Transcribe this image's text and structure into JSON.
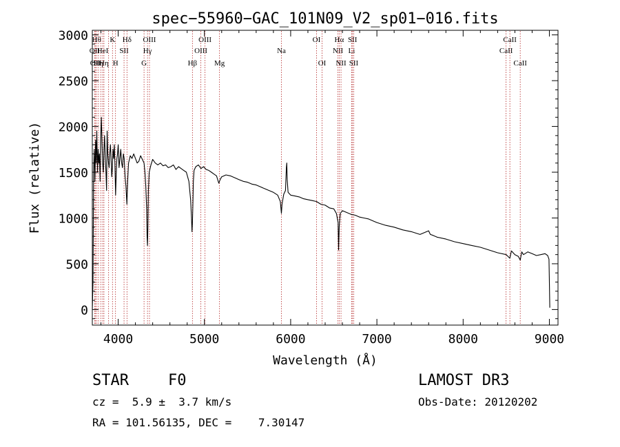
{
  "chart_data": {
    "type": "line",
    "title": "spec−55960−GAC_101N09_V2_sp01−016.fits",
    "xlabel": "Wavelength (Å)",
    "ylabel": "Flux (relative)",
    "xlim": [
      3700,
      9100
    ],
    "ylim": [
      -170,
      3050
    ],
    "xticks": [
      4000,
      5000,
      6000,
      7000,
      8000,
      9000
    ],
    "xtick_labels": [
      "4000",
      "5000",
      "6000",
      "7000",
      "8000",
      "9000"
    ],
    "yticks": [
      0,
      500,
      1000,
      1500,
      2000,
      2500,
      3000
    ],
    "ytick_labels": [
      "0",
      "500",
      "1000",
      "1500",
      "2000",
      "2500",
      "3000"
    ],
    "series": [
      {
        "name": "spectrum",
        "x": [
          3700,
          3708,
          3715,
          3722,
          3730,
          3738,
          3745,
          3752,
          3760,
          3768,
          3775,
          3782,
          3790,
          3798,
          3805,
          3812,
          3820,
          3828,
          3835,
          3842,
          3850,
          3858,
          3865,
          3872,
          3880,
          3888,
          3895,
          3902,
          3910,
          3918,
          3925,
          3933,
          3940,
          3948,
          3955,
          3962,
          3970,
          3978,
          3985,
          3992,
          4000,
          4010,
          4020,
          4030,
          4040,
          4050,
          4060,
          4070,
          4080,
          4090,
          4101,
          4110,
          4120,
          4140,
          4160,
          4180,
          4200,
          4220,
          4240,
          4260,
          4280,
          4300,
          4310,
          4320,
          4330,
          4335,
          4340,
          4345,
          4350,
          4360,
          4380,
          4400,
          4430,
          4460,
          4490,
          4520,
          4550,
          4580,
          4610,
          4640,
          4670,
          4700,
          4730,
          4760,
          4790,
          4820,
          4840,
          4850,
          4856,
          4861,
          4866,
          4872,
          4880,
          4900,
          4930,
          4960,
          4990,
          5020,
          5050,
          5080,
          5110,
          5140,
          5167,
          5175,
          5183,
          5200,
          5250,
          5300,
          5350,
          5400,
          5450,
          5500,
          5550,
          5600,
          5650,
          5700,
          5750,
          5800,
          5850,
          5880,
          5893,
          5900,
          5920,
          5940,
          5950,
          5955,
          5960,
          5970,
          6000,
          6050,
          6100,
          6150,
          6200,
          6250,
          6300,
          6350,
          6400,
          6450,
          6500,
          6530,
          6550,
          6556,
          6563,
          6570,
          6576,
          6600,
          6650,
          6700,
          6750,
          6800,
          6850,
          6900,
          6950,
          7000,
          7100,
          7200,
          7300,
          7400,
          7500,
          7600,
          7620,
          7650,
          7700,
          7800,
          7900,
          8000,
          8100,
          8200,
          8300,
          8400,
          8500,
          8542,
          8560,
          8600,
          8640,
          8662,
          8680,
          8700,
          8750,
          8800,
          8850,
          8900,
          8950,
          8980,
          8995,
          9000,
          9005
        ],
        "y": [
          0,
          300,
          1500,
          1750,
          1400,
          1850,
          1600,
          1950,
          1500,
          1750,
          1600,
          1700,
          1400,
          1900,
          2100,
          1850,
          1600,
          1500,
          1750,
          1900,
          1650,
          1500,
          1300,
          1950,
          1700,
          1600,
          1550,
          1700,
          1800,
          1650,
          1450,
          1550,
          1750,
          1650,
          1800,
          1600,
          1250,
          1500,
          1650,
          1700,
          1800,
          1550,
          1650,
          1750,
          1600,
          1550,
          1700,
          1650,
          1450,
          1350,
          1150,
          1400,
          1600,
          1680,
          1650,
          1700,
          1650,
          1600,
          1620,
          1680,
          1640,
          1600,
          1500,
          1350,
          1100,
          800,
          700,
          900,
          1300,
          1500,
          1580,
          1640,
          1600,
          1580,
          1600,
          1570,
          1580,
          1550,
          1560,
          1580,
          1530,
          1560,
          1540,
          1520,
          1500,
          1400,
          1200,
          1000,
          850,
          940,
          1150,
          1400,
          1520,
          1560,
          1580,
          1540,
          1560,
          1530,
          1520,
          1500,
          1480,
          1460,
          1380,
          1400,
          1420,
          1450,
          1470,
          1460,
          1440,
          1420,
          1400,
          1390,
          1370,
          1360,
          1340,
          1320,
          1300,
          1280,
          1250,
          1180,
          1050,
          1150,
          1260,
          1300,
          1550,
          1600,
          1420,
          1280,
          1250,
          1240,
          1230,
          1210,
          1200,
          1190,
          1180,
          1150,
          1140,
          1110,
          1100,
          1050,
          950,
          650,
          900,
          1000,
          1050,
          1080,
          1060,
          1040,
          1030,
          1010,
          1000,
          990,
          970,
          950,
          920,
          900,
          870,
          850,
          820,
          860,
          820,
          810,
          790,
          770,
          740,
          720,
          700,
          680,
          650,
          620,
          600,
          560,
          640,
          600,
          580,
          540,
          630,
          600,
          630,
          610,
          590,
          600,
          610,
          590,
          550,
          300,
          20
        ]
      }
    ],
    "line_annotations": [
      {
        "x": 3727,
        "label": "OII",
        "row": 2
      },
      {
        "x": 3735,
        "label": "OII",
        "row": 3
      },
      {
        "x": 3750,
        "label": "Hθ",
        "row": 1
      },
      {
        "x": 3771,
        "label": "Hη",
        "row": 3
      },
      {
        "x": 3798,
        "label": "",
        "row": 0
      },
      {
        "x": 3820,
        "label": "HeI",
        "row": 2
      },
      {
        "x": 3835,
        "label": "Hη",
        "row": 3
      },
      {
        "x": 3889,
        "label": "",
        "row": 0
      },
      {
        "x": 3934,
        "label": "K",
        "row": 1
      },
      {
        "x": 3969,
        "label": "H",
        "row": 3
      },
      {
        "x": 4068,
        "label": "SII",
        "row": 2
      },
      {
        "x": 4102,
        "label": "Hδ",
        "row": 1
      },
      {
        "x": 4300,
        "label": "G",
        "row": 3
      },
      {
        "x": 4340,
        "label": "Hγ",
        "row": 2
      },
      {
        "x": 4363,
        "label": "OIII",
        "row": 1
      },
      {
        "x": 4861,
        "label": "Hβ",
        "row": 3
      },
      {
        "x": 4959,
        "label": "OIII",
        "row": 2
      },
      {
        "x": 5007,
        "label": "OIII",
        "row": 1
      },
      {
        "x": 5175,
        "label": "Mg",
        "row": 3
      },
      {
        "x": 5893,
        "label": "Na",
        "row": 2
      },
      {
        "x": 6300,
        "label": "OI",
        "row": 1
      },
      {
        "x": 6364,
        "label": "OI",
        "row": 3
      },
      {
        "x": 6548,
        "label": "NII",
        "row": 2
      },
      {
        "x": 6563,
        "label": "Hα",
        "row": 1
      },
      {
        "x": 6584,
        "label": "NII",
        "row": 3
      },
      {
        "x": 6707,
        "label": "Li",
        "row": 2
      },
      {
        "x": 6717,
        "label": "SII",
        "row": 1
      },
      {
        "x": 6731,
        "label": "SII",
        "row": 3
      },
      {
        "x": 8498,
        "label": "CaII",
        "row": 2
      },
      {
        "x": 8542,
        "label": "CaII",
        "row": 1
      },
      {
        "x": 8662,
        "label": "CaII",
        "row": 3
      }
    ]
  },
  "info": {
    "class_label": "STAR",
    "subclass": "F0",
    "survey": "LAMOST DR3",
    "redshift": "cz =  5.9 ±  3.7 km/s",
    "obs_date": "Obs-Date: 20120202",
    "coords": "RA = 101.56135, DEC =    7.30147"
  }
}
